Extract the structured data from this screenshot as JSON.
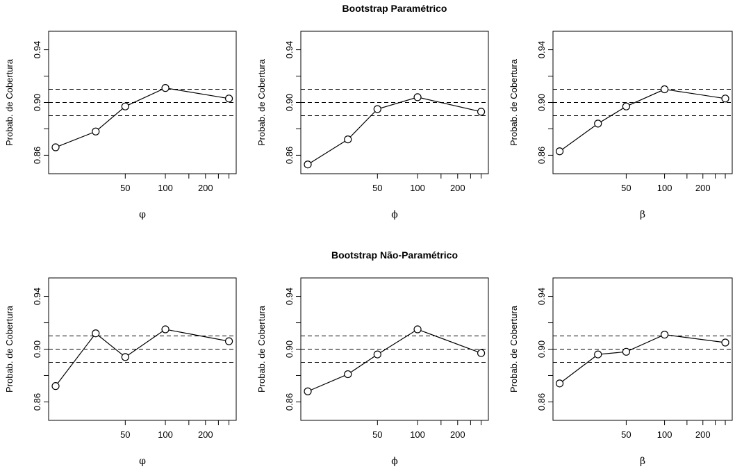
{
  "chart_data": [
    {
      "type": "line",
      "x": [
        15,
        30,
        50,
        100,
        300
      ],
      "values": [
        0.866,
        0.878,
        0.897,
        0.911,
        0.903
      ],
      "xlabel": "φ",
      "ylabel": "Probab. de Cobertura",
      "xscale": "log",
      "xlim": [
        13.3,
        340
      ],
      "xticks": [
        50,
        100,
        200
      ],
      "xminor_ticks": [
        150,
        250,
        300
      ],
      "ylim": [
        0.846,
        0.954
      ],
      "yticks": [
        0.86,
        {
          "value": 0.9,
          "label": "0.90"
        },
        0.94
      ],
      "yminor_ticks": [
        0.88,
        0.92
      ],
      "hlines": [
        0.89,
        0.9,
        0.91
      ],
      "color": "#000000"
    },
    {
      "type": "line",
      "title": "Bootstrap Paramétrico",
      "x": [
        15,
        30,
        50,
        100,
        300
      ],
      "values": [
        0.853,
        0.872,
        0.895,
        0.904,
        0.893
      ],
      "xlabel": "ϕ",
      "ylabel": "Probab. de Cobertura",
      "xscale": "log",
      "xlim": [
        13.3,
        340
      ],
      "xticks": [
        50,
        100,
        200
      ],
      "xminor_ticks": [
        150,
        250,
        300
      ],
      "ylim": [
        0.846,
        0.954
      ],
      "yticks": [
        0.86,
        {
          "value": 0.9,
          "label": "0.90"
        },
        0.94
      ],
      "yminor_ticks": [
        0.88,
        0.92
      ],
      "hlines": [
        0.89,
        0.9,
        0.91
      ],
      "color": "#000000"
    },
    {
      "type": "line",
      "x": [
        15,
        30,
        50,
        100,
        300
      ],
      "values": [
        0.863,
        0.884,
        0.897,
        0.91,
        0.903
      ],
      "xlabel": "β",
      "ylabel": "Probab. de Cobertura",
      "xscale": "log",
      "xlim": [
        13.3,
        340
      ],
      "xticks": [
        50,
        100,
        200
      ],
      "xminor_ticks": [
        150,
        250,
        300
      ],
      "ylim": [
        0.846,
        0.954
      ],
      "yticks": [
        0.86,
        {
          "value": 0.9,
          "label": "0.90"
        },
        0.94
      ],
      "yminor_ticks": [
        0.88,
        0.92
      ],
      "hlines": [
        0.89,
        0.9,
        0.91
      ],
      "color": "#000000"
    },
    {
      "type": "line",
      "x": [
        15,
        30,
        50,
        100,
        300
      ],
      "values": [
        0.872,
        0.912,
        0.894,
        0.915,
        0.906
      ],
      "xlabel": "φ",
      "ylabel": "Probab. de Cobertura",
      "xscale": "log",
      "xlim": [
        13.3,
        340
      ],
      "xticks": [
        50,
        100,
        200
      ],
      "xminor_ticks": [
        150,
        250,
        300
      ],
      "ylim": [
        0.846,
        0.954
      ],
      "yticks": [
        0.86,
        {
          "value": 0.9,
          "label": "0.90"
        },
        0.94
      ],
      "yminor_ticks": [
        0.88,
        0.92
      ],
      "hlines": [
        0.89,
        0.9,
        0.91
      ],
      "color": "#000000"
    },
    {
      "type": "line",
      "title": "Bootstrap Não-Paramétrico",
      "x": [
        15,
        30,
        50,
        100,
        300
      ],
      "values": [
        0.868,
        0.881,
        0.896,
        0.915,
        0.897
      ],
      "xlabel": "ϕ",
      "ylabel": "Probab. de Cobertura",
      "xscale": "log",
      "xlim": [
        13.3,
        340
      ],
      "xticks": [
        50,
        100,
        200
      ],
      "xminor_ticks": [
        150,
        250,
        300
      ],
      "ylim": [
        0.846,
        0.954
      ],
      "yticks": [
        0.86,
        {
          "value": 0.9,
          "label": "0.90"
        },
        0.94
      ],
      "yminor_ticks": [
        0.88,
        0.92
      ],
      "hlines": [
        0.89,
        0.9,
        0.91
      ],
      "color": "#000000"
    },
    {
      "type": "line",
      "x": [
        15,
        30,
        50,
        100,
        300
      ],
      "values": [
        0.874,
        0.896,
        0.898,
        0.911,
        0.905
      ],
      "xlabel": "β",
      "ylabel": "Probab. de Cobertura",
      "xscale": "log",
      "xlim": [
        13.3,
        340
      ],
      "xticks": [
        50,
        100,
        200
      ],
      "xminor_ticks": [
        150,
        250,
        300
      ],
      "ylim": [
        0.846,
        0.954
      ],
      "yticks": [
        0.86,
        {
          "value": 0.9,
          "label": "0.90"
        },
        0.94
      ],
      "yminor_ticks": [
        0.88,
        0.92
      ],
      "hlines": [
        0.89,
        0.9,
        0.91
      ],
      "color": "#000000"
    }
  ]
}
